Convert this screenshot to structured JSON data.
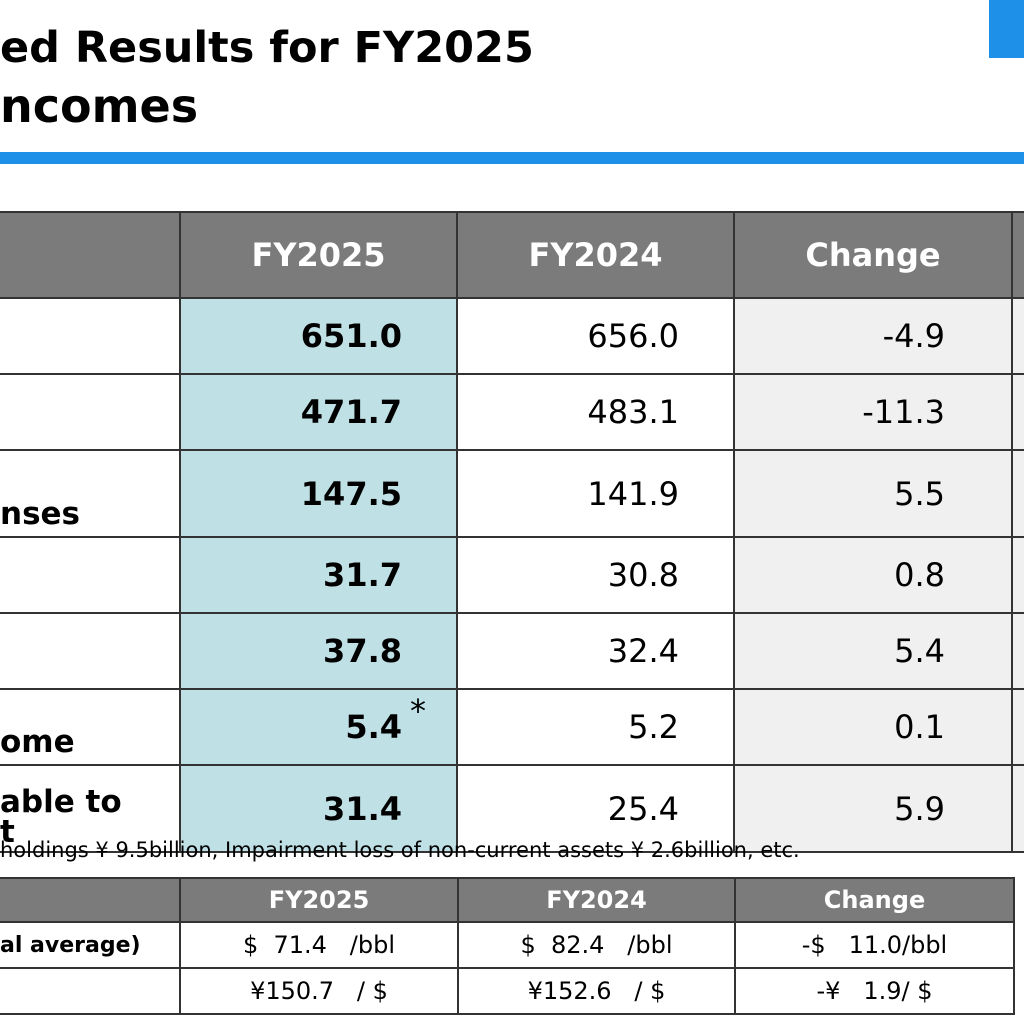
{
  "header": {
    "title_line1": "ed Results for FY2025",
    "title_line2": "ncomes"
  },
  "main_table": {
    "columns": [
      "FY2025",
      "FY2024",
      "Change"
    ],
    "rows": [
      {
        "label": "",
        "fy2025": "651.0",
        "fy2024": "656.0",
        "change": "-4.9"
      },
      {
        "label": "",
        "fy2025": "471.7",
        "fy2024": "483.1",
        "change": "-11.3"
      },
      {
        "label": "nses",
        "fy2025": "147.5",
        "fy2024": "141.9",
        "change": "5.5"
      },
      {
        "label": "",
        "fy2025": "31.7",
        "fy2024": "30.8",
        "change": "0.8"
      },
      {
        "label": "",
        "fy2025": "37.8",
        "fy2024": "32.4",
        "change": "5.4"
      },
      {
        "label": "ome",
        "fy2025": "5.4",
        "fy2024": "5.2",
        "change": "0.1",
        "note_mark": "*"
      },
      {
        "label_line1": "able to",
        "label_line2": "t",
        "fy2025": "31.4",
        "fy2024": "25.4",
        "change": "5.9"
      }
    ]
  },
  "footnote": "holdings ¥ 9.5billion, Impairment loss of non-current assets ¥ 2.6billion, etc.",
  "sub_table": {
    "columns": [
      "FY2025",
      "FY2024",
      "Change"
    ],
    "rows": [
      {
        "label": "al average)",
        "fy2025": "$  71.4   /bbl",
        "fy2024": "$  82.4   /bbl",
        "change": "-$   11.0/bbl"
      },
      {
        "label": "",
        "fy2025": "¥150.7   / $",
        "fy2024": "¥152.6   / $",
        "change": "-¥   1.9/ $"
      }
    ]
  },
  "colors": {
    "accent": "#1e90e8",
    "header_bg": "#7b7b7b",
    "current_col_bg": "#bfe0e5",
    "change_col_bg": "#f0f0f0"
  }
}
